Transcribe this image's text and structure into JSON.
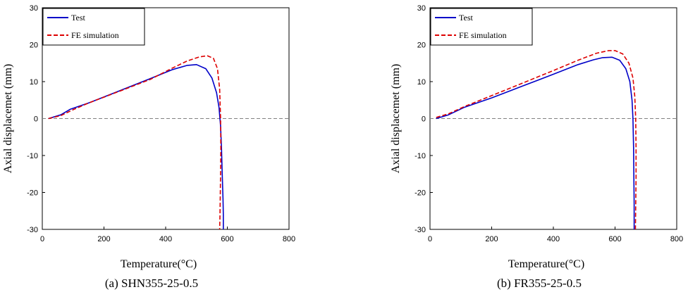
{
  "figure": {
    "background": "#ffffff"
  },
  "chart_data": [
    {
      "type": "line",
      "caption": "(a) SHN355-25-0.5",
      "xlabel": "Temperature(°C)",
      "ylabel": "Axial displacemet (mm)",
      "xlim": [
        0,
        800
      ],
      "ylim": [
        -30,
        30
      ],
      "xticks": [
        0,
        200,
        400,
        600,
        800
      ],
      "yticks": [
        30,
        20,
        10,
        0,
        -10,
        -20,
        -30
      ],
      "grid": false,
      "zero_line": {
        "y": 0,
        "style": "dashed",
        "color": "#808080"
      },
      "legend": {
        "placement": "top-left"
      },
      "series": [
        {
          "name": "Test",
          "color": "#0000c8",
          "style": "solid",
          "x": [
            20,
            60,
            90,
            150,
            250,
            350,
            420,
            470,
            500,
            530,
            550,
            565,
            573,
            578,
            581,
            583,
            585,
            586,
            587,
            587
          ],
          "y": [
            0,
            1,
            2.5,
            4.2,
            7.5,
            10.8,
            13.2,
            14.4,
            14.6,
            13.5,
            11,
            7,
            3,
            -2,
            -8,
            -14,
            -19,
            -22,
            -26,
            -30
          ]
        },
        {
          "name": "FE simulation",
          "color": "#dd0000",
          "style": "dashed",
          "x": [
            20,
            60,
            100,
            150,
            250,
            350,
            420,
            470,
            510,
            535,
            555,
            568,
            575,
            578,
            579,
            578,
            577,
            576,
            575
          ],
          "y": [
            0,
            0.8,
            2.4,
            4.2,
            7.4,
            10.6,
            13.6,
            15.6,
            16.7,
            17,
            16.3,
            13.5,
            8,
            0,
            -8,
            -15,
            -22,
            -27,
            -30
          ]
        }
      ]
    },
    {
      "type": "line",
      "caption": "(b) FR355-25-0.5",
      "xlabel": "Temperature(°C)",
      "ylabel": "Axial displacemet (mm)",
      "xlim": [
        0,
        800
      ],
      "ylim": [
        -30,
        30
      ],
      "xticks": [
        0,
        200,
        400,
        600,
        800
      ],
      "yticks": [
        30,
        20,
        10,
        0,
        -10,
        -20,
        -30
      ],
      "grid": false,
      "zero_line": {
        "y": 0,
        "style": "dashed",
        "color": "#808080"
      },
      "legend": {
        "placement": "top-left"
      },
      "series": [
        {
          "name": "Test",
          "color": "#0000c8",
          "style": "solid",
          "x": [
            20,
            60,
            110,
            200,
            300,
            400,
            480,
            530,
            560,
            590,
            615,
            635,
            648,
            655,
            658,
            660,
            661,
            662,
            662
          ],
          "y": [
            0,
            1,
            3,
            5.6,
            8.8,
            12,
            14.6,
            15.9,
            16.5,
            16.6,
            15.8,
            13.5,
            10,
            5,
            0,
            -8,
            -16,
            -23,
            -30
          ]
        },
        {
          "name": "FE simulation",
          "color": "#dd0000",
          "style": "dashed",
          "x": [
            20,
            60,
            110,
            200,
            300,
            400,
            480,
            540,
            580,
            600,
            625,
            645,
            658,
            664,
            667,
            668,
            668,
            667,
            666
          ],
          "y": [
            0.3,
            1.3,
            3.2,
            6.2,
            9.6,
            13,
            15.8,
            17.7,
            18.4,
            18.4,
            17.5,
            15,
            11,
            6,
            0,
            -8,
            -16,
            -24,
            -30
          ]
        }
      ]
    }
  ]
}
